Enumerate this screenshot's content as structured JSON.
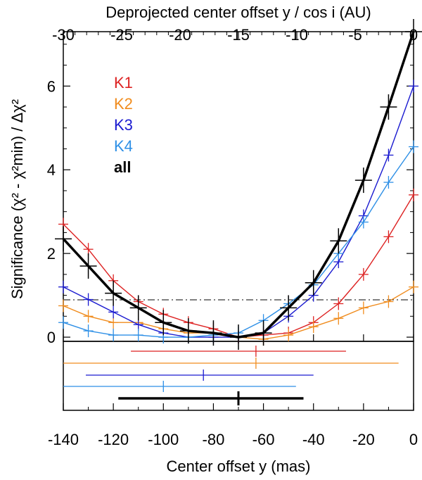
{
  "chart_data": {
    "type": "line",
    "xlabel": "Center offset y (mas)",
    "x2label": "Deprojected center offset y / cos i (AU)",
    "ylabel": "Significance (χ² - χ²min) / Δχ²",
    "xlim": [
      -140,
      0
    ],
    "ylim": [
      -0.1,
      7.3
    ],
    "x2lim": [
      -30,
      0
    ],
    "x_ticks": [
      -140,
      -120,
      -100,
      -80,
      -60,
      -40,
      -20,
      0
    ],
    "x_tick_labels": [
      "-140",
      "-120",
      "-100",
      "-80",
      "-60",
      "-40",
      "-20",
      "0"
    ],
    "x2_ticks": [
      -30,
      -25,
      -20,
      -15,
      -10,
      -5,
      0
    ],
    "x2_tick_labels": [
      "-30",
      "-25",
      "-20",
      "-15",
      "-10",
      "-5",
      "0"
    ],
    "y_ticks": [
      0,
      2,
      4,
      6
    ],
    "y_tick_labels": [
      "0",
      "2",
      "4",
      "6"
    ],
    "threshold_line": 1.0,
    "x": [
      -140,
      -130,
      -120,
      -110,
      -100,
      -90,
      -80,
      -70,
      -60,
      -50,
      -40,
      -30,
      -20,
      -10,
      0
    ],
    "series": [
      {
        "name": "K1",
        "color": "#dd2222",
        "values": [
          2.7,
          2.1,
          1.35,
          0.85,
          0.55,
          0.35,
          0.2,
          0.0,
          0.05,
          0.1,
          0.35,
          0.8,
          1.5,
          2.4,
          3.4
        ]
      },
      {
        "name": "K2",
        "color": "#f08c1e",
        "values": [
          0.75,
          0.5,
          0.35,
          0.35,
          0.2,
          0.1,
          0.1,
          0.0,
          -0.05,
          0.05,
          0.25,
          0.45,
          0.7,
          0.85,
          1.2
        ]
      },
      {
        "name": "K3",
        "color": "#1a1ad0",
        "values": [
          1.2,
          0.9,
          0.6,
          0.3,
          0.1,
          0.0,
          0.0,
          0.0,
          0.1,
          0.5,
          1.0,
          1.8,
          2.9,
          4.35,
          6.0
        ]
      },
      {
        "name": "K4",
        "color": "#2d8fe6",
        "values": [
          0.35,
          0.15,
          0.05,
          0.05,
          0.0,
          0.0,
          0.05,
          0.1,
          0.4,
          0.8,
          1.25,
          2.0,
          2.75,
          3.7,
          4.55
        ]
      },
      {
        "name": "all",
        "color": "#000000",
        "values": [
          2.35,
          1.7,
          1.05,
          0.7,
          0.35,
          0.15,
          0.1,
          0.0,
          0.1,
          0.7,
          1.3,
          2.3,
          3.75,
          5.5,
          7.3
        ]
      }
    ],
    "best_fit_summary": [
      {
        "name": "K1",
        "color": "#dd2222",
        "center": -63,
        "low": -113,
        "high": -27
      },
      {
        "name": "K2",
        "color": "#f08c1e",
        "center": -63,
        "low": -140,
        "high": -6
      },
      {
        "name": "K3",
        "color": "#1a1ad0",
        "center": -84,
        "low": -131,
        "high": -40
      },
      {
        "name": "K4",
        "color": "#2d8fe6",
        "center": -100,
        "low": -140,
        "high": -47
      },
      {
        "name": "all",
        "color": "#000000",
        "center": -70,
        "low": -118,
        "high": -44
      }
    ]
  }
}
